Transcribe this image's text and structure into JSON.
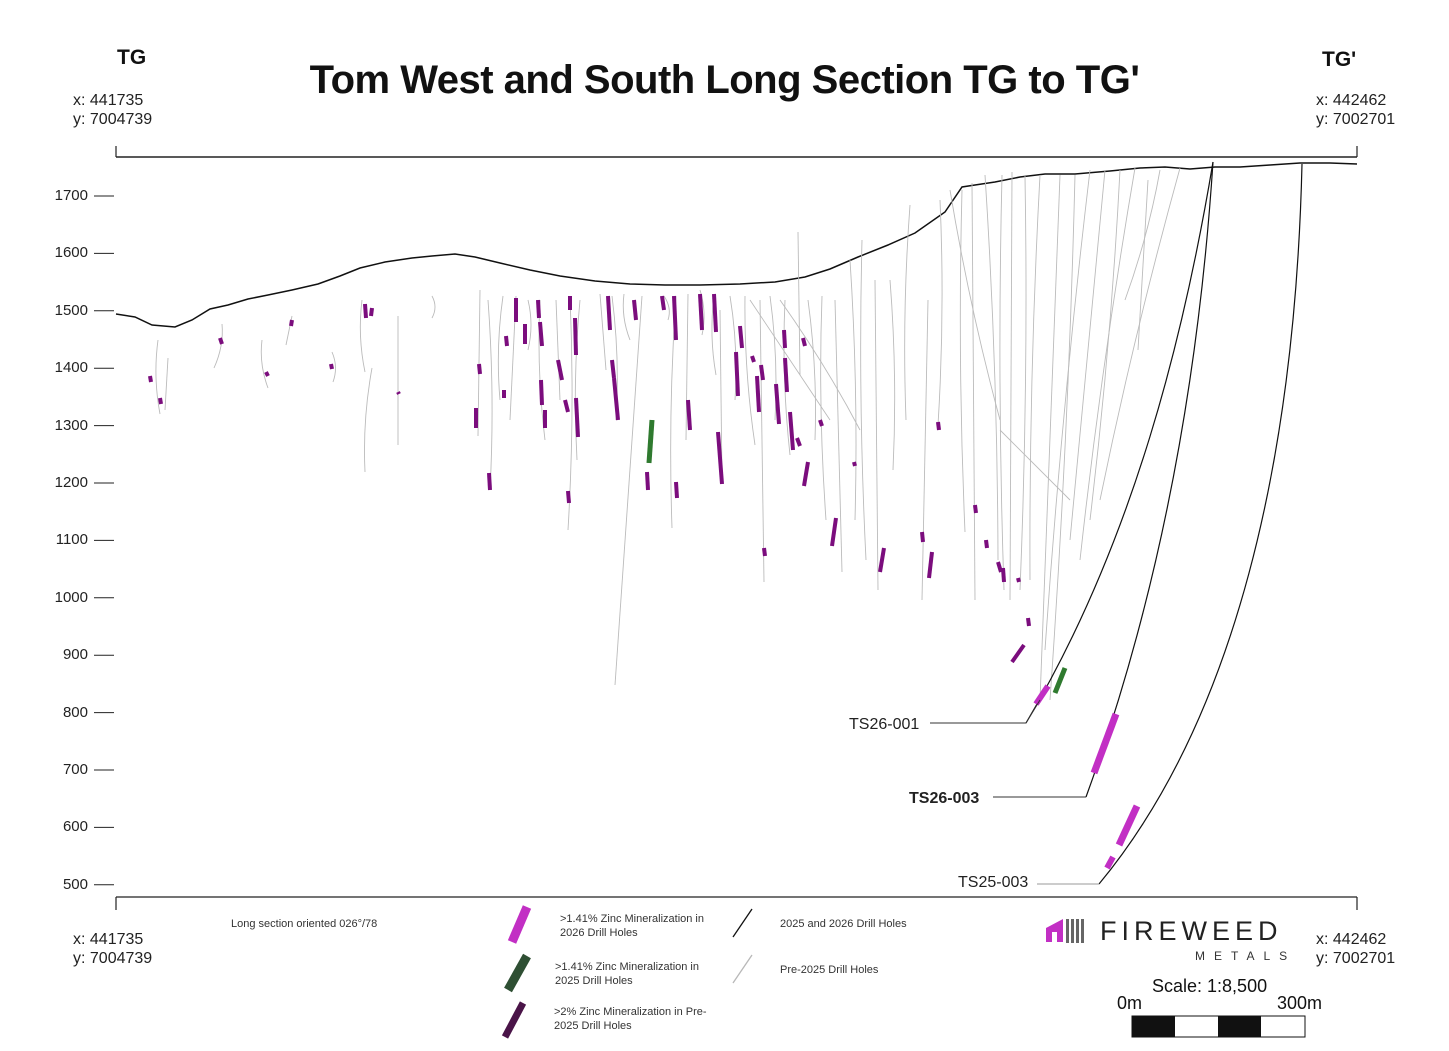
{
  "title": "Tom West and South Long Section TG to TG'",
  "left_corner": {
    "label": "TG",
    "x": "x: 441735",
    "y": "y: 7004739"
  },
  "right_corner": {
    "label": "TG'",
    "x": "x: 442462",
    "y": "y: 7002701"
  },
  "bottom_left": {
    "x": "x: 441735",
    "y": "y: 7004739"
  },
  "bottom_right": {
    "x": "x: 442462",
    "y": "y: 7002701"
  },
  "elevation_ticks": [
    "1700",
    "1600",
    "1500",
    "1400",
    "1300",
    "1200",
    "1100",
    "1000",
    "900",
    "800",
    "700",
    "600",
    "500"
  ],
  "hole_labels": {
    "ts26_001": "TS26-001",
    "ts26_003": "TS26-003",
    "ts25_003": "TS25-003"
  },
  "note": "Long section oriented 026°/78",
  "legend": {
    "mag_2026": ">1.41% Zinc Mineralization in 2026 Drill Holes",
    "green_2025": ">1.41% Zinc Mineralization in 2025 Drill Holes",
    "dark_pre2025": ">2% Zinc Mineralization in Pre-2025 Drill Holes",
    "holes_2025_2026": "2025 and 2026 Drill Holes",
    "holes_pre2025": "Pre-2025 Drill Holes"
  },
  "logo": {
    "name": "FIREWEED",
    "sub": "METALS"
  },
  "scale": {
    "label": "Scale: 1:8,500",
    "start": "0m",
    "end": "300m"
  },
  "colors": {
    "magenta": "#c22fc4",
    "green": "#2f7a2f",
    "dark_purple": "#4a1448",
    "purple": "#7b0d7d",
    "pre_hole": "#b8b8b8"
  }
}
